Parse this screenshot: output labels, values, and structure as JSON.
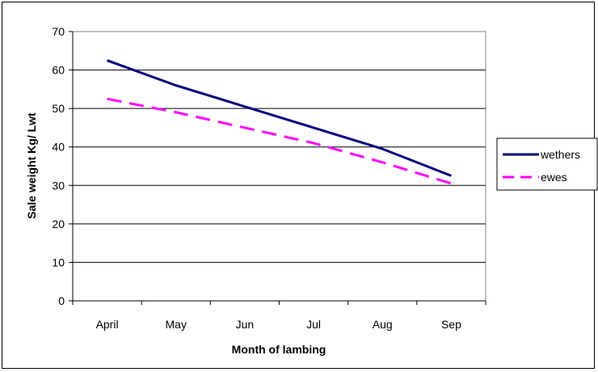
{
  "chart_data": {
    "type": "line",
    "categories": [
      "April",
      "May",
      "Jun",
      "Jul",
      "Aug",
      "Sep"
    ],
    "series": [
      {
        "name": "wethers",
        "values": [
          62.5,
          56,
          50.5,
          45,
          39.5,
          32.5
        ],
        "color": "#000080",
        "dash": "solid"
      },
      {
        "name": "ewes",
        "values": [
          52.5,
          49,
          45,
          41,
          36,
          30.5
        ],
        "color": "#ff00ff",
        "dash": "dashed"
      }
    ],
    "xlabel": "Month of lambing",
    "ylabel": "Sale weight Kg/ Lwt",
    "ylim": [
      0,
      70
    ],
    "yticks": [
      0,
      10,
      20,
      30,
      40,
      50,
      60,
      70
    ],
    "grid": true,
    "legend": "right"
  }
}
